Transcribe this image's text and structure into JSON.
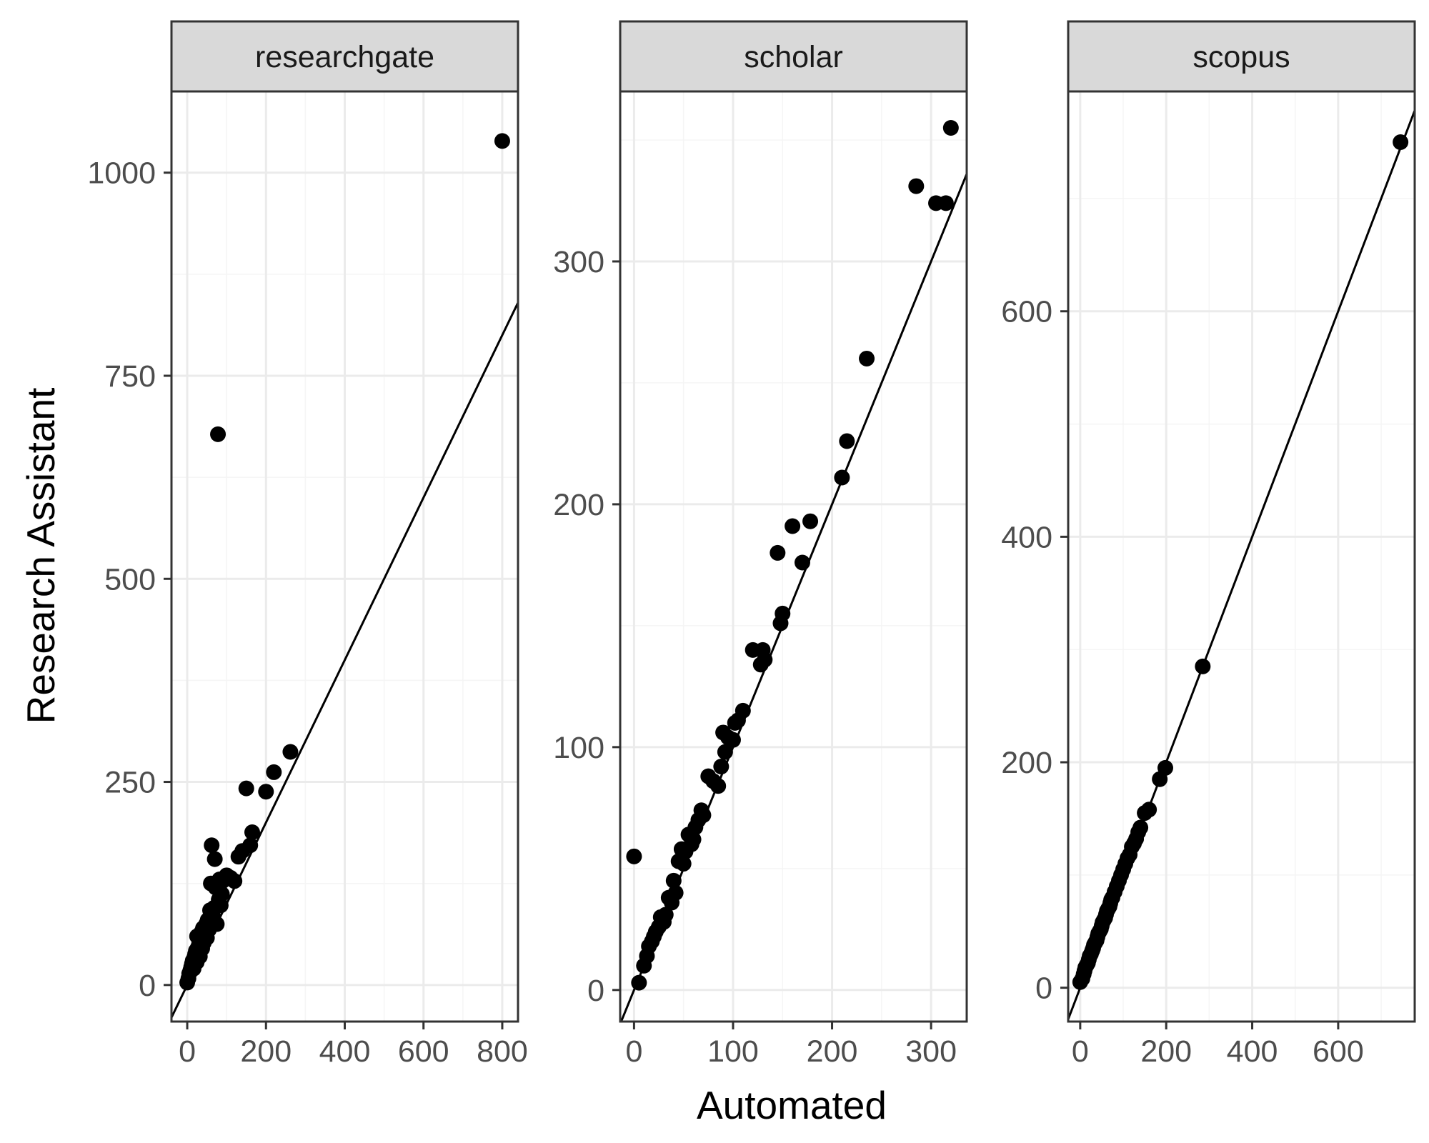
{
  "figure": {
    "xlabel": "Automated",
    "ylabel": "Research Assistant"
  },
  "colors": {
    "panel_background": "#ffffff",
    "strip_fill": "#d9d9d9",
    "border": "#333333",
    "major_grid": "#ebebeb",
    "minor_grid": "#f5f5f5",
    "points": "#000000",
    "fit_line": "#000000",
    "tick_text": "#4d4d4d"
  },
  "chart_data": [
    {
      "type": "scatter",
      "facet": "researchgate",
      "xlabel": "Automated",
      "ylabel": "Research Assistant",
      "xlim": [
        -40,
        840
      ],
      "ylim": [
        -45,
        1100
      ],
      "xticks": [
        0,
        200,
        400,
        600,
        800
      ],
      "xtick_labels": [
        "0",
        "200",
        "400",
        "600",
        "800"
      ],
      "yticks": [
        0,
        250,
        500,
        750,
        1000
      ],
      "ytick_labels": [
        "0",
        "250",
        "500",
        "750",
        "1000"
      ],
      "grid": true,
      "fit_line": {
        "intercept": 0,
        "slope": 1
      },
      "points": [
        [
          0,
          3
        ],
        [
          3,
          8
        ],
        [
          5,
          14
        ],
        [
          8,
          18
        ],
        [
          10,
          22
        ],
        [
          12,
          26
        ],
        [
          14,
          30
        ],
        [
          16,
          20
        ],
        [
          18,
          34
        ],
        [
          20,
          38
        ],
        [
          22,
          42
        ],
        [
          24,
          28
        ],
        [
          25,
          60
        ],
        [
          27,
          46
        ],
        [
          30,
          50
        ],
        [
          32,
          35
        ],
        [
          34,
          55
        ],
        [
          36,
          65
        ],
        [
          38,
          45
        ],
        [
          40,
          70
        ],
        [
          42,
          52
        ],
        [
          45,
          62
        ],
        [
          48,
          75
        ],
        [
          50,
          58
        ],
        [
          52,
          80
        ],
        [
          55,
          68
        ],
        [
          58,
          92
        ],
        [
          60,
          125
        ],
        [
          62,
          172
        ],
        [
          65,
          85
        ],
        [
          68,
          95
        ],
        [
          70,
          155
        ],
        [
          72,
          120
        ],
        [
          75,
          75
        ],
        [
          78,
          678
        ],
        [
          80,
          105
        ],
        [
          82,
          130
        ],
        [
          85,
          98
        ],
        [
          88,
          112
        ],
        [
          90,
          128
        ],
        [
          100,
          135
        ],
        [
          110,
          132
        ],
        [
          120,
          128
        ],
        [
          130,
          158
        ],
        [
          140,
          165
        ],
        [
          150,
          242
        ],
        [
          160,
          172
        ],
        [
          165,
          188
        ],
        [
          200,
          238
        ],
        [
          220,
          262
        ],
        [
          262,
          287
        ],
        [
          800,
          1039
        ]
      ]
    },
    {
      "type": "scatter",
      "facet": "scholar",
      "xlabel": "Automated",
      "ylabel": "Research Assistant",
      "xlim": [
        -14,
        336
      ],
      "ylim": [
        -13,
        370
      ],
      "xticks": [
        0,
        100,
        200,
        300
      ],
      "xtick_labels": [
        "0",
        "100",
        "200",
        "300"
      ],
      "yticks": [
        0,
        100,
        200,
        300
      ],
      "ytick_labels": [
        "0",
        "100",
        "200",
        "300"
      ],
      "grid": true,
      "fit_line": {
        "intercept": 0,
        "slope": 1
      },
      "points": [
        [
          0,
          55
        ],
        [
          5,
          3
        ],
        [
          10,
          10
        ],
        [
          13,
          14
        ],
        [
          15,
          18
        ],
        [
          18,
          20
        ],
        [
          20,
          22
        ],
        [
          22,
          24
        ],
        [
          25,
          26
        ],
        [
          27,
          30
        ],
        [
          30,
          28
        ],
        [
          32,
          31
        ],
        [
          35,
          38
        ],
        [
          38,
          36
        ],
        [
          40,
          45
        ],
        [
          42,
          40
        ],
        [
          45,
          53
        ],
        [
          48,
          58
        ],
        [
          50,
          52
        ],
        [
          52,
          57
        ],
        [
          55,
          64
        ],
        [
          58,
          60
        ],
        [
          60,
          62
        ],
        [
          62,
          67
        ],
        [
          65,
          70
        ],
        [
          68,
          74
        ],
        [
          70,
          72
        ],
        [
          75,
          88
        ],
        [
          80,
          86
        ],
        [
          85,
          84
        ],
        [
          88,
          92
        ],
        [
          90,
          106
        ],
        [
          92,
          98
        ],
        [
          95,
          104
        ],
        [
          100,
          103
        ],
        [
          102,
          110
        ],
        [
          105,
          111
        ],
        [
          110,
          115
        ],
        [
          120,
          140
        ],
        [
          128,
          134
        ],
        [
          130,
          140
        ],
        [
          132,
          136
        ],
        [
          145,
          180
        ],
        [
          148,
          151
        ],
        [
          150,
          155
        ],
        [
          160,
          191
        ],
        [
          170,
          176
        ],
        [
          178,
          193
        ],
        [
          210,
          211
        ],
        [
          215,
          226
        ],
        [
          235,
          260
        ],
        [
          285,
          331
        ],
        [
          305,
          324
        ],
        [
          315,
          324
        ],
        [
          320,
          355
        ]
      ]
    },
    {
      "type": "scatter",
      "facet": "scopus",
      "xlabel": "Automated",
      "ylabel": "Research Assistant",
      "xlim": [
        -28,
        778
      ],
      "ylim": [
        -30,
        795
      ],
      "xticks": [
        0,
        200,
        400,
        600
      ],
      "xtick_labels": [
        "0",
        "200",
        "400",
        "600"
      ],
      "yticks": [
        0,
        200,
        400,
        600
      ],
      "ytick_labels": [
        "0",
        "200",
        "400",
        "600"
      ],
      "grid": true,
      "fit_line": {
        "intercept": 0,
        "slope": 1
      },
      "points": [
        [
          0,
          5
        ],
        [
          5,
          8
        ],
        [
          8,
          12
        ],
        [
          10,
          15
        ],
        [
          12,
          18
        ],
        [
          15,
          20
        ],
        [
          18,
          22
        ],
        [
          20,
          25
        ],
        [
          22,
          28
        ],
        [
          25,
          30
        ],
        [
          28,
          33
        ],
        [
          30,
          35
        ],
        [
          32,
          38
        ],
        [
          35,
          40
        ],
        [
          38,
          42
        ],
        [
          40,
          45
        ],
        [
          42,
          48
        ],
        [
          45,
          50
        ],
        [
          48,
          52
        ],
        [
          50,
          55
        ],
        [
          52,
          58
        ],
        [
          55,
          60
        ],
        [
          58,
          62
        ],
        [
          60,
          65
        ],
        [
          62,
          68
        ],
        [
          65,
          70
        ],
        [
          68,
          72
        ],
        [
          70,
          75
        ],
        [
          72,
          78
        ],
        [
          75,
          80
        ],
        [
          80,
          85
        ],
        [
          85,
          90
        ],
        [
          90,
          95
        ],
        [
          95,
          100
        ],
        [
          100,
          105
        ],
        [
          105,
          110
        ],
        [
          110,
          115
        ],
        [
          115,
          118
        ],
        [
          120,
          125
        ],
        [
          125,
          128
        ],
        [
          130,
          132
        ],
        [
          135,
          138
        ],
        [
          140,
          142
        ],
        [
          150,
          155
        ],
        [
          160,
          158
        ],
        [
          185,
          185
        ],
        [
          198,
          195
        ],
        [
          285,
          285
        ],
        [
          745,
          750
        ]
      ]
    }
  ]
}
